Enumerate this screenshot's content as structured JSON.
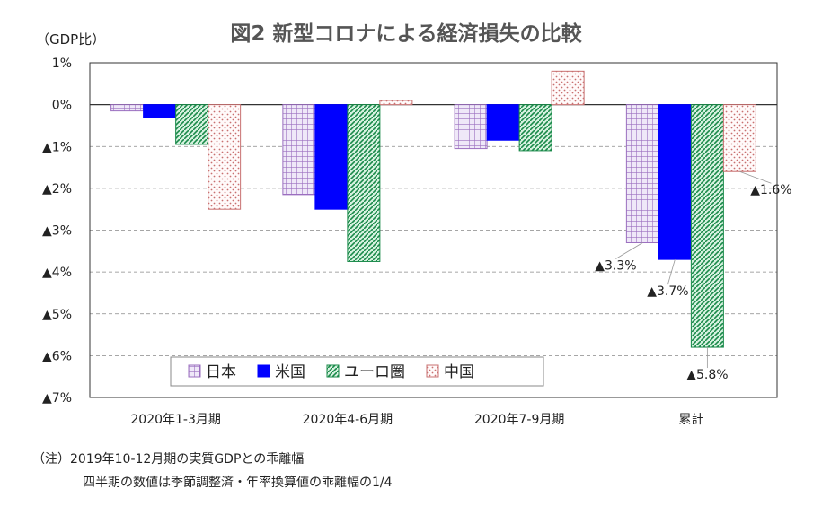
{
  "chart_data": {
    "type": "bar",
    "title": "図2 新型コロナによる経済損失の比較",
    "unit_label": "（GDP比）",
    "categories": [
      "2020年1-3月期",
      "2020年4-6月期",
      "2020年7-9月期",
      "累計"
    ],
    "series": [
      {
        "name": "日本",
        "values": [
          -0.15,
          -2.15,
          -1.05,
          -3.3
        ],
        "color": "#9b6fbf",
        "fill": "#efe8f8",
        "pattern": "grid"
      },
      {
        "name": "米国",
        "values": [
          -0.3,
          -2.5,
          -0.85,
          -3.7
        ],
        "color": "#0000ff",
        "fill": "#0000ff",
        "pattern": "solid"
      },
      {
        "name": "ユーロ圏",
        "values": [
          -0.95,
          -3.75,
          -1.1,
          -5.8
        ],
        "color": "#1a8a4a",
        "fill": "#d5f1df",
        "pattern": "diagonal"
      },
      {
        "name": "中国",
        "values": [
          -2.5,
          0.1,
          0.8,
          -1.6
        ],
        "color": "#c87070",
        "fill": "#fff8f8",
        "pattern": "dots"
      }
    ],
    "ylim": [
      -7,
      1
    ],
    "yticks": [
      1,
      0,
      -1,
      -2,
      -3,
      -4,
      -5,
      -6,
      -7
    ],
    "ytick_labels": [
      "1%",
      "0%",
      "▲1%",
      "▲2%",
      "▲3%",
      "▲4%",
      "▲5%",
      "▲6%",
      "▲7%"
    ],
    "annotations": [
      {
        "category": "累計",
        "series": "日本",
        "text": "▲3.3%"
      },
      {
        "category": "累計",
        "series": "米国",
        "text": "▲3.7%"
      },
      {
        "category": "累計",
        "series": "ユーロ圏",
        "text": "▲5.8%"
      },
      {
        "category": "累計",
        "series": "中国",
        "text": "▲1.6%"
      }
    ],
    "grid": true,
    "legend_position": "bottom-center"
  },
  "notes": {
    "line1": "（注）2019年10-12月期の実質GDPとの乖離幅",
    "line2": "四半期の数値は季節調整済・年率換算値の乖離幅の1/4"
  }
}
